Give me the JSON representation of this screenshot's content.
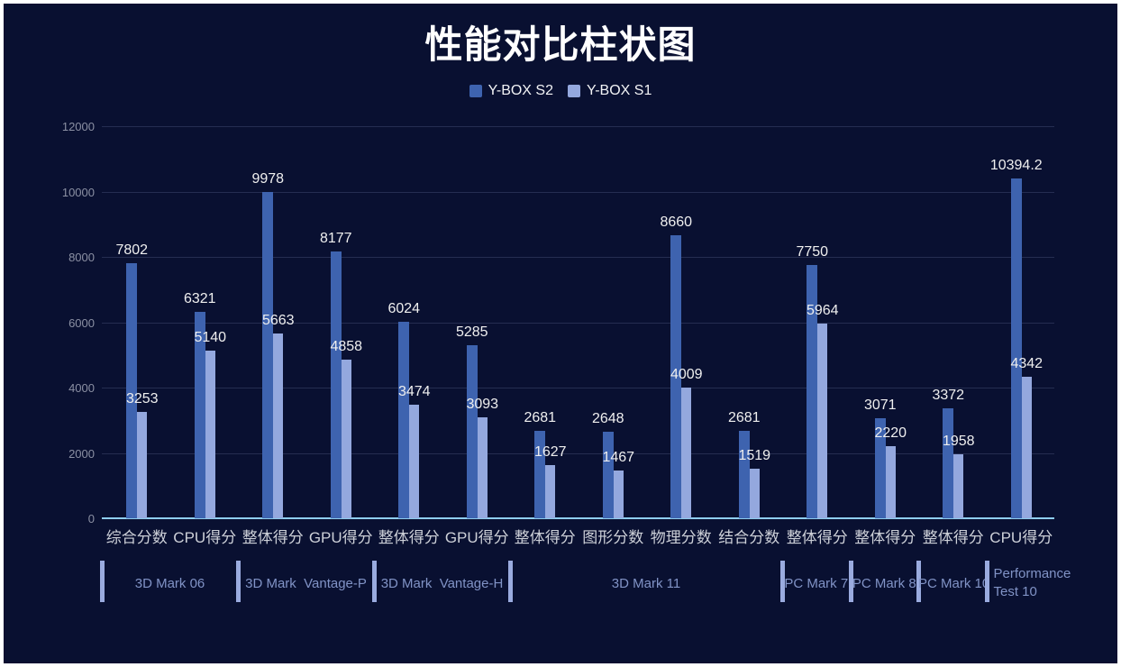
{
  "title": "性能对比柱状图",
  "legend": [
    {
      "label": "Y-BOX S2",
      "color": "#3e63af"
    },
    {
      "label": "Y-BOX S1",
      "color": "#94a8de"
    }
  ],
  "chart_data": {
    "type": "bar",
    "title": "性能对比柱状图",
    "categories": [
      "综合分数",
      "CPU得分",
      "整体得分",
      "GPU得分",
      "整体得分",
      "GPU得分",
      "整体得分",
      "图形分数",
      "物理分数",
      "结合分数",
      "整体得分",
      "整体得分",
      "整体得分",
      "CPU得分"
    ],
    "series": [
      {
        "name": "Y-BOX S2",
        "color": "#3e63af",
        "values": [
          7802,
          6321,
          9978,
          8177,
          6024,
          5285,
          2681,
          2648,
          8660,
          2681,
          7750,
          3071,
          3372,
          10394.2
        ]
      },
      {
        "name": "Y-BOX S1",
        "color": "#94a8de",
        "values": [
          3253,
          5140,
          5663,
          4858,
          3474,
          3093,
          1627,
          1467,
          4009,
          1519,
          5964,
          2220,
          1958,
          4342
        ]
      }
    ],
    "groups": [
      {
        "label": "3D Mark 06",
        "span": [
          0,
          1
        ]
      },
      {
        "label": "3D Mark  Vantage-P",
        "span": [
          2,
          3
        ]
      },
      {
        "label": "3D Mark  Vantage-H",
        "span": [
          4,
          5
        ]
      },
      {
        "label": "3D Mark 11",
        "span": [
          6,
          9
        ]
      },
      {
        "label": "PC Mark 7",
        "span": [
          10,
          10
        ]
      },
      {
        "label": "PC Mark 8",
        "span": [
          11,
          11
        ]
      },
      {
        "label": "PC Mark 10",
        "span": [
          12,
          12
        ]
      },
      {
        "label": "Performance Test 10",
        "span": [
          13,
          13
        ],
        "lines": [
          "Performance",
          "Test 10"
        ]
      }
    ],
    "xlabel": "",
    "ylabel": "",
    "ylim": [
      0,
      12000
    ],
    "ytick_interval": 2000,
    "yticks": [
      "0",
      "2000",
      "4000",
      "6000",
      "8000",
      "10000",
      "12000"
    ],
    "grid": true,
    "legend_position": "top",
    "colors": {
      "background": "#091031",
      "frame": "#ffffff",
      "axis_baseline": "#8ecdee",
      "gridline": "rgba(136,152,198,0.22)",
      "y_tick_text": "#8b90a3",
      "x_tick_text": "#cdd0d8",
      "value_label_text": "#efefef",
      "group_text": "#8193c6",
      "group_separator": "#9aabdf",
      "title_text": "#ffffff"
    }
  }
}
